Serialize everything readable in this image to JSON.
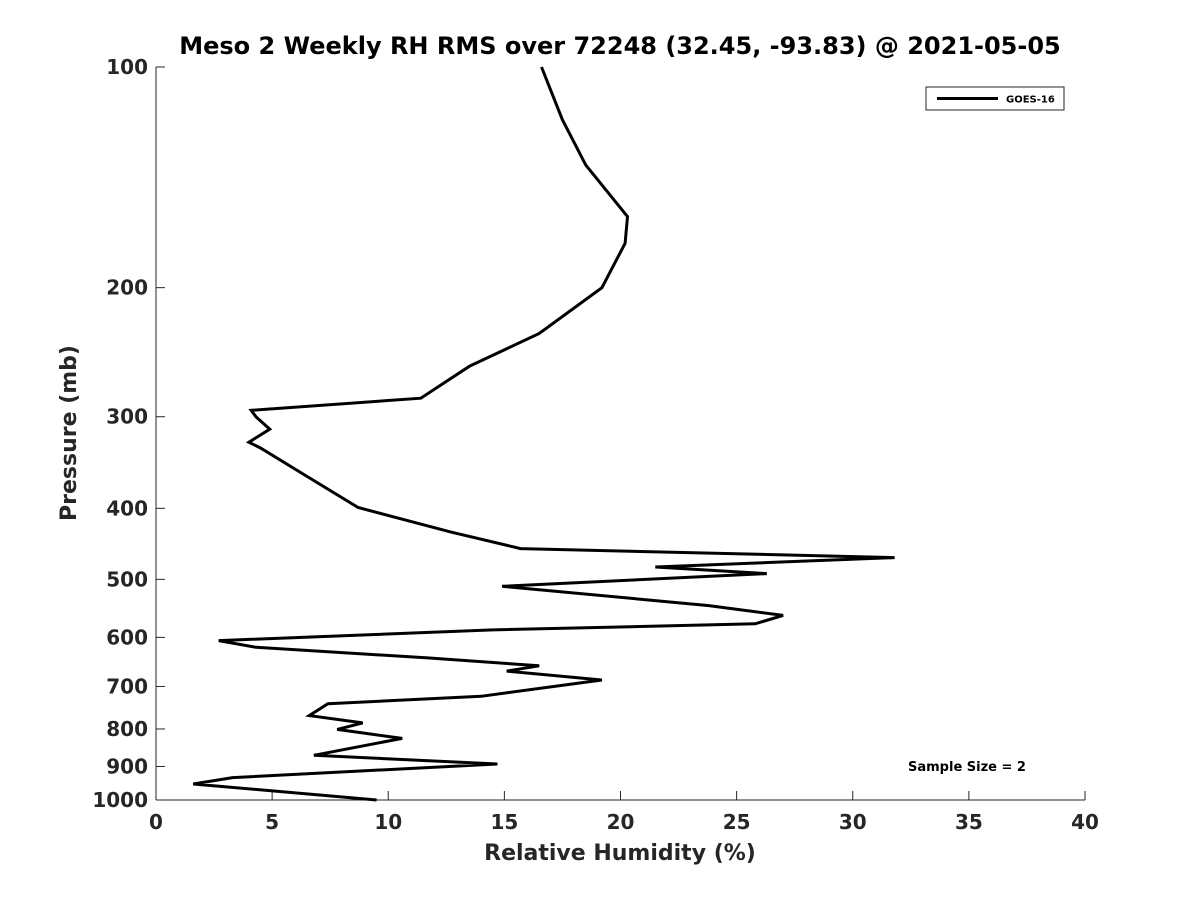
{
  "chart_data": {
    "type": "line",
    "title": "Meso 2 Weekly RH RMS over 72248 (32.45, -93.83) @ 2021-05-05",
    "xlabel": "Relative Humidity (%)",
    "ylabel": "Pressure (mb)",
    "xlim": [
      0,
      40
    ],
    "ylim": [
      100,
      1000
    ],
    "y_scale": "log",
    "y_reversed": true,
    "x_ticks": [
      0,
      5,
      10,
      15,
      20,
      25,
      30,
      35,
      40
    ],
    "y_ticks": [
      100,
      200,
      300,
      400,
      500,
      600,
      700,
      800,
      900,
      1000
    ],
    "grid": false,
    "legend_position": "top-right",
    "annotation": "Sample Size = 2",
    "series": [
      {
        "name": "GOES-16",
        "color": "#000000",
        "x": [
          16.6,
          17.5,
          18.5,
          20.3,
          20.2,
          19.2,
          16.5,
          13.5,
          11.4,
          4.1,
          4.3,
          4.9,
          4.0,
          4.5,
          6.2,
          8.7,
          12.7,
          15.7,
          31.8,
          21.5,
          26.3,
          14.9,
          23.8,
          27.0,
          25.8,
          14.5,
          2.7,
          4.3,
          11.7,
          16.5,
          15.1,
          19.2,
          14.0,
          7.4,
          6.6,
          8.9,
          7.8,
          10.6,
          6.8,
          14.7,
          3.3,
          1.6,
          9.5
        ],
        "y": [
          100,
          118,
          136,
          160,
          174,
          200,
          231,
          256,
          283,
          294,
          300,
          312,
          325,
          331,
          357,
          399,
          431,
          454,
          467,
          481,
          491,
          511,
          543,
          560,
          575,
          586,
          606,
          619,
          640,
          656,
          667,
          686,
          722,
          739,
          767,
          785,
          801,
          824,
          869,
          893,
          932,
          951,
          1000
        ]
      }
    ]
  }
}
